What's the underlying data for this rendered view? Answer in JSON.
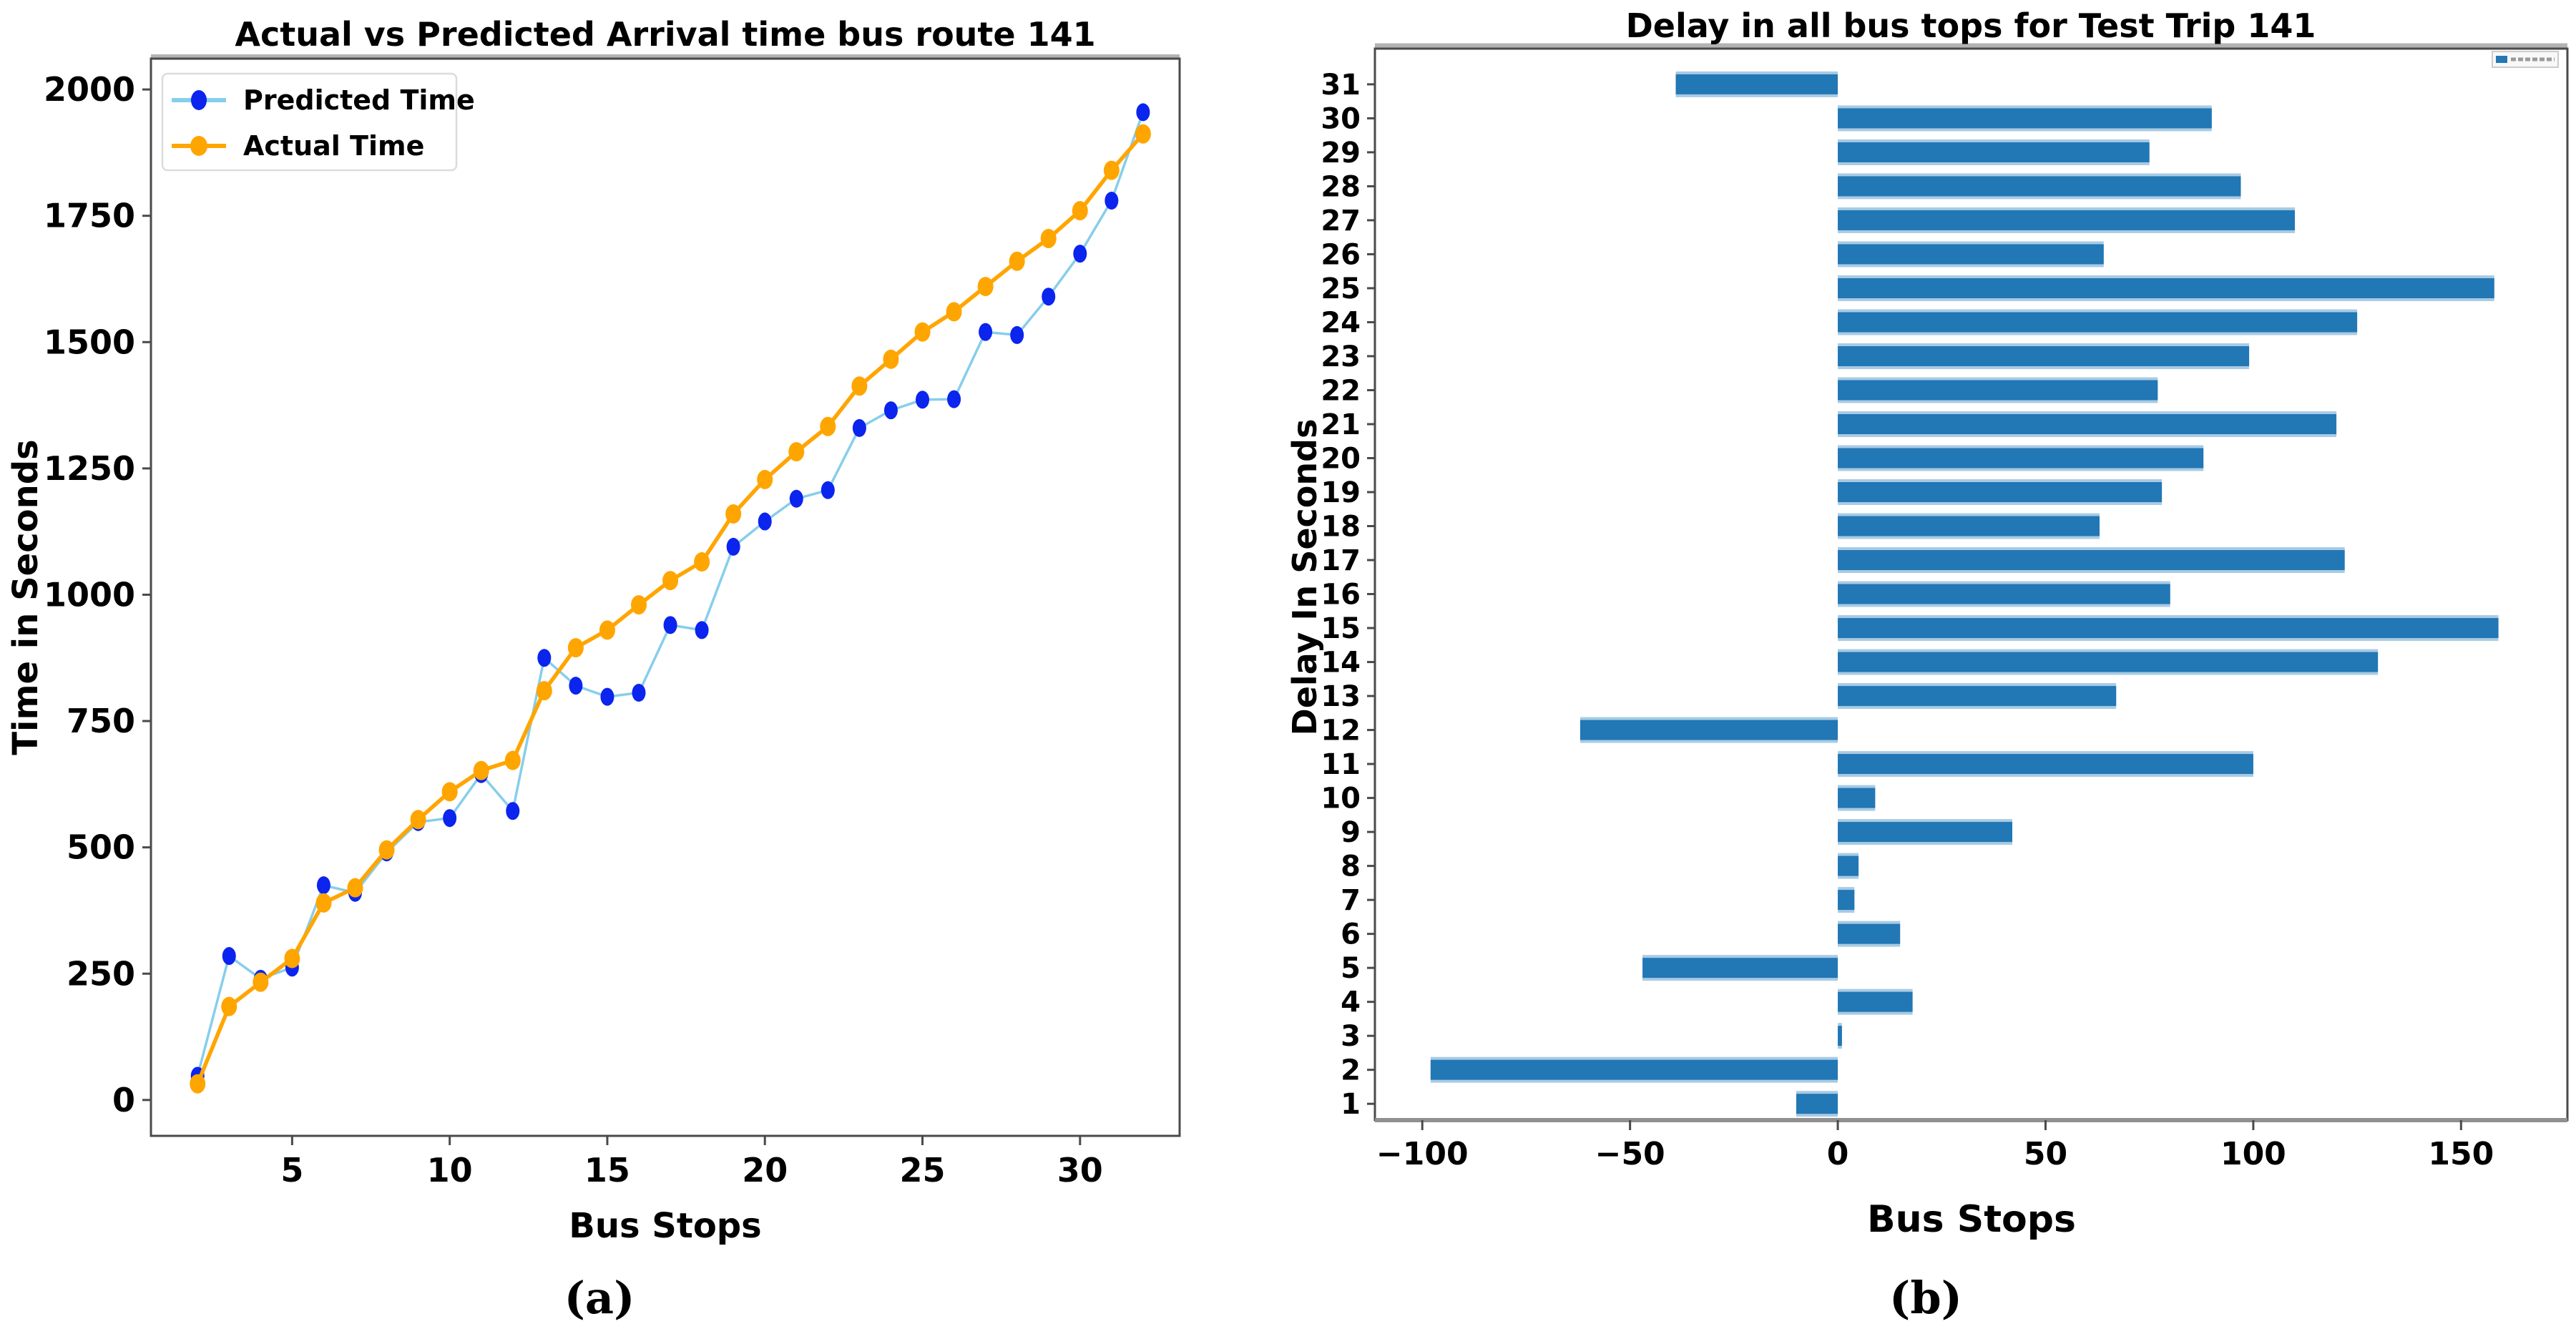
{
  "figure": {
    "caption_a": "(a)",
    "caption_b": "(b)"
  },
  "colors": {
    "predicted_marker": "#0b24ee",
    "predicted_line": "#87ceeb",
    "actual": "#ffa500",
    "bar_fill": "#2277b5",
    "bar_edge": "#a8cbe4",
    "spine_dark": "#4a4a4a",
    "spine_light": "#b3b3b3",
    "spine_gray": "#909090",
    "legend_border": "#dcdcdc",
    "text": "#000000"
  },
  "chart_data": [
    {
      "type": "line",
      "title": "Actual vs Predicted Arrival time bus route 141",
      "xlabel": "Bus Stops",
      "ylabel": "Time in Seconds",
      "x": [
        2,
        3,
        4,
        5,
        6,
        7,
        8,
        9,
        10,
        11,
        12,
        13,
        14,
        15,
        16,
        17,
        18,
        19,
        20,
        21,
        22,
        23,
        24,
        25,
        26,
        27,
        28,
        29,
        30,
        31,
        32
      ],
      "series": [
        {
          "name": "Predicted Time",
          "values": [
            48,
            285,
            240,
            262,
            425,
            410,
            490,
            550,
            558,
            645,
            572,
            875,
            820,
            798,
            806,
            940,
            930,
            1095,
            1145,
            1190,
            1207,
            1330,
            1365,
            1386,
            1387,
            1520,
            1514,
            1590,
            1675,
            1780,
            1955
          ]
        },
        {
          "name": "Actual Time",
          "values": [
            32,
            185,
            233,
            280,
            390,
            420,
            495,
            555,
            610,
            652,
            672,
            810,
            895,
            930,
            980,
            1028,
            1065,
            1160,
            1228,
            1283,
            1333,
            1413,
            1466,
            1520,
            1560,
            1610,
            1660,
            1705,
            1760,
            1840,
            1912
          ]
        }
      ],
      "xticks": [
        5,
        10,
        15,
        20,
        25,
        30
      ],
      "yticks": [
        0,
        250,
        500,
        750,
        1000,
        1250,
        1500,
        1750,
        2000
      ],
      "xlim": [
        0.52,
        33.16
      ],
      "ylim": [
        -71,
        2061
      ],
      "legend_position": "upper left",
      "grid": false
    },
    {
      "type": "bar",
      "orientation": "horizontal",
      "title": "Delay in all bus tops for Test Trip 141",
      "xlabel": "Bus Stops",
      "ylabel": "Delay In Seconds",
      "categories": [
        1,
        2,
        3,
        4,
        5,
        6,
        7,
        8,
        9,
        10,
        11,
        12,
        13,
        14,
        15,
        16,
        17,
        18,
        19,
        20,
        21,
        22,
        23,
        24,
        25,
        26,
        27,
        28,
        29,
        30,
        31
      ],
      "values": [
        -10,
        -98,
        1,
        18,
        -47,
        15,
        4,
        5,
        42,
        9,
        100,
        -62,
        67,
        130,
        159,
        80,
        122,
        63,
        78,
        88,
        120,
        77,
        99,
        125,
        158,
        64,
        110,
        97,
        75,
        90,
        -39
      ],
      "xticks": [
        -100,
        -50,
        0,
        50,
        100,
        150
      ],
      "xlim": [
        -111.4,
        175.6
      ],
      "ylim": [
        0.52,
        32.05
      ],
      "grid": false
    }
  ]
}
